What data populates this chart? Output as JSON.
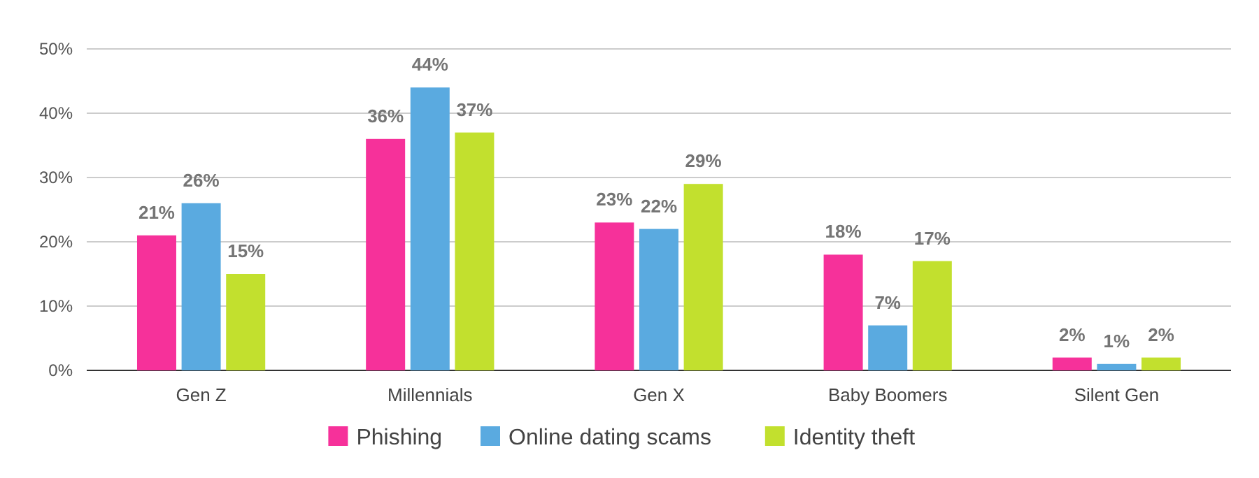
{
  "chart_data": {
    "type": "bar",
    "categories": [
      "Gen Z",
      "Millennials",
      "Gen X",
      "Baby Boomers",
      "Silent Gen"
    ],
    "series": [
      {
        "name": "Phishing",
        "color": "#f6319a",
        "values": [
          21,
          36,
          23,
          18,
          2
        ],
        "value_labels": [
          "21%",
          "36%",
          "23%",
          "18%",
          "2%"
        ]
      },
      {
        "name": "Online dating scams",
        "color": "#5aaae0",
        "values": [
          26,
          44,
          22,
          7,
          1
        ],
        "value_labels": [
          "26%",
          "44%",
          "22%",
          "7%",
          "1%"
        ]
      },
      {
        "name": "Identity theft",
        "color": "#c2e02e",
        "values": [
          15,
          37,
          29,
          17,
          2
        ],
        "value_labels": [
          "15%",
          "37%",
          "29%",
          "17%",
          "2%"
        ]
      }
    ],
    "ylim": [
      0,
      50
    ],
    "yticks": [
      {
        "value": 0,
        "label": "0%"
      },
      {
        "value": 10,
        "label": "10%"
      },
      {
        "value": 20,
        "label": "20%"
      },
      {
        "value": 30,
        "label": "30%"
      },
      {
        "value": 40,
        "label": "40%"
      },
      {
        "value": 50,
        "label": "50%"
      }
    ],
    "grid": "y",
    "legend": "bottom"
  }
}
